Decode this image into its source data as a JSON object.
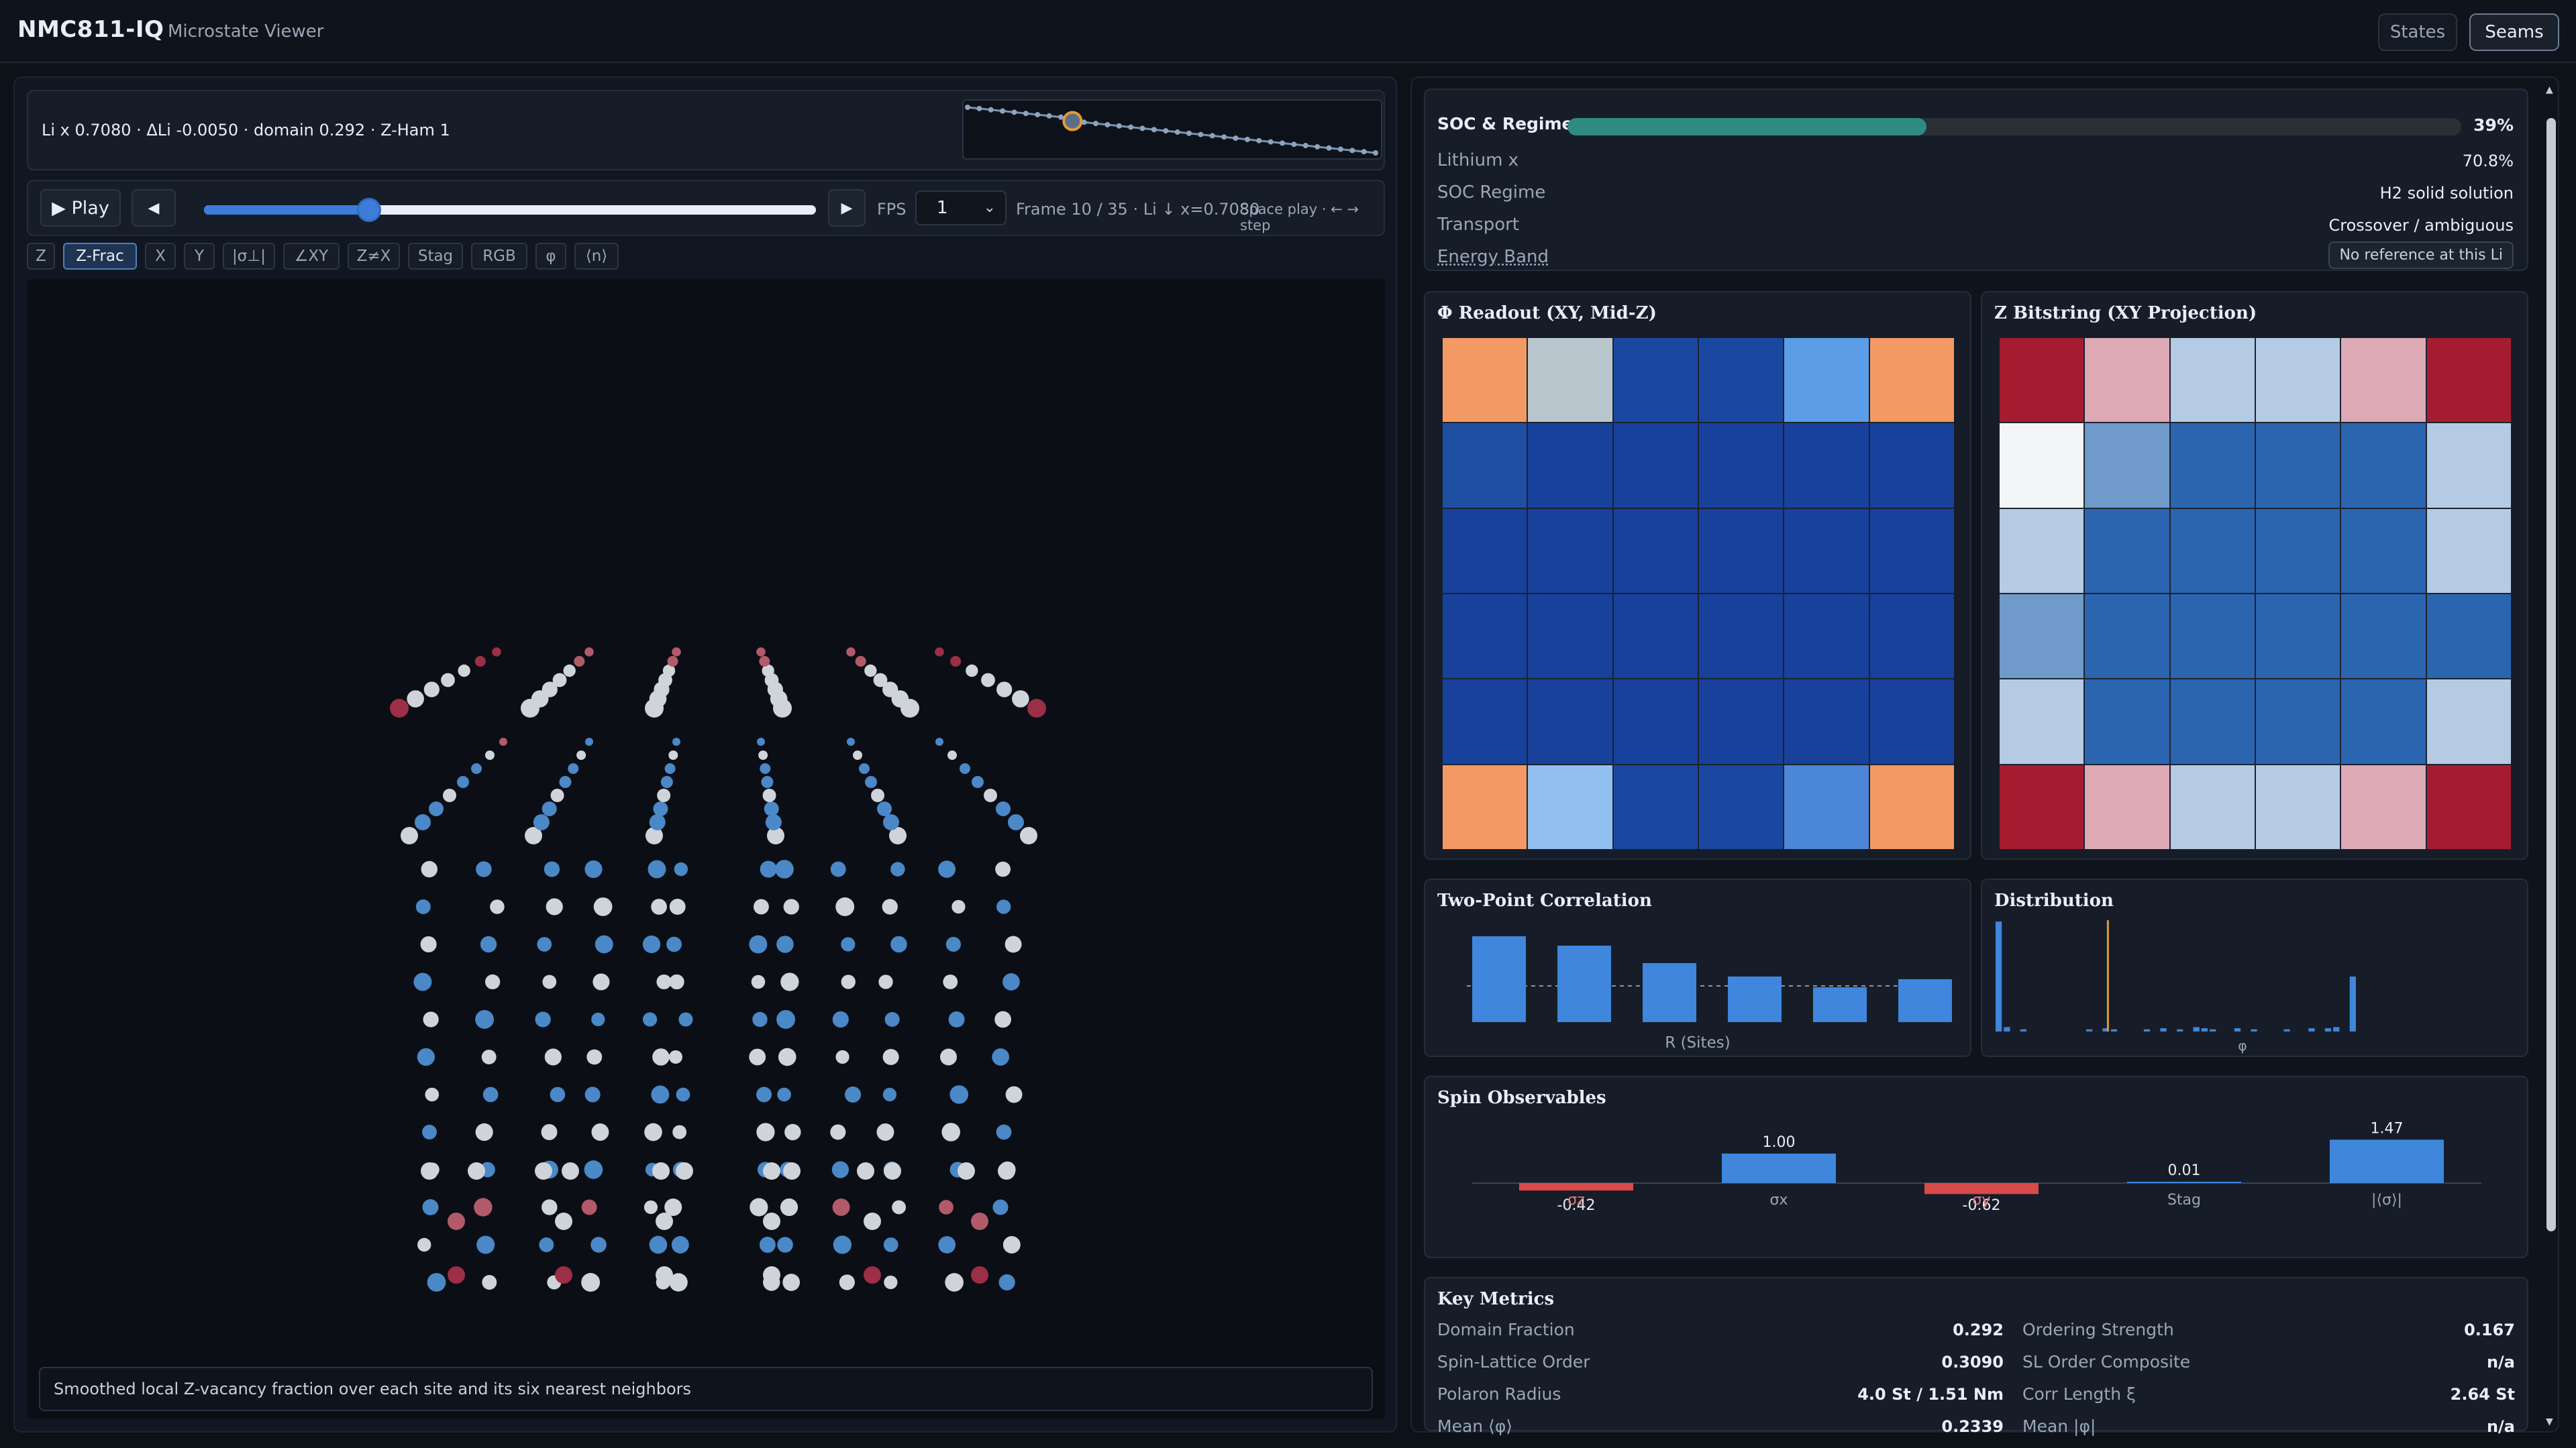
{
  "header": {
    "brand": "NMC811-IQ",
    "subtitle": "Microstate Viewer",
    "buttons": [
      {
        "label": "States",
        "active": false
      },
      {
        "label": "Seams",
        "active": true
      }
    ]
  },
  "left": {
    "info_text": "Li x 0.7080 · ΔLi -0.0050 · domain 0.292 · Z-Ham 1",
    "sparkline": {
      "points": 36,
      "current_index": 9
    },
    "controls": {
      "play_label": "▶ Play",
      "prev_label": "◀",
      "next_label": "▶",
      "slider_fraction": 0.27,
      "fps_label": "FPS",
      "fps_value": "1",
      "frame_text": "Frame 10 / 35 · Li ↓ x=0.7080",
      "hint_text": "Space play · ← → step"
    },
    "modes": [
      {
        "label": "Z",
        "active": false
      },
      {
        "label": "Z-Frac",
        "active": true
      },
      {
        "label": "X",
        "active": false
      },
      {
        "label": "Y",
        "active": false
      },
      {
        "label": "|σ⊥|",
        "active": false
      },
      {
        "label": "∠XY",
        "active": false
      },
      {
        "label": "Z≠X",
        "active": false
      },
      {
        "label": "Stag",
        "active": false
      },
      {
        "label": "RGB",
        "active": false
      },
      {
        "label": "φ",
        "active": false
      },
      {
        "label": "⟨n⟩",
        "active": false
      }
    ],
    "caption": "Smoothed local Z-vacancy fraction over each site and its six nearest neighbors"
  },
  "right": {
    "soc": {
      "title": "SOC & Regime",
      "percent_value": 39,
      "percent_label": "39%",
      "color": "#2e8b80",
      "rows": [
        {
          "label": "Lithium x",
          "value": "70.8%"
        },
        {
          "label": "SOC Regime",
          "value": "H2 solid solution"
        },
        {
          "label": "Transport",
          "value": "Crossover / ambiguous"
        }
      ],
      "energy_label": "Energy Band",
      "energy_badge": "No reference at this Li"
    },
    "phi_readout": {
      "title": "Φ Readout (XY, Mid-Z)",
      "cells": [
        [
          "#f39a64",
          "#b9c6cd",
          "#1a48a0",
          "#1a48a0",
          "#5b9de6",
          "#f39a64"
        ],
        [
          "#1f4fa3",
          "#17419a",
          "#17419a",
          "#17419a",
          "#17419a",
          "#17419a"
        ],
        [
          "#17419a",
          "#17419a",
          "#17419a",
          "#17419a",
          "#17419a",
          "#17419a"
        ],
        [
          "#17419a",
          "#17419a",
          "#17419a",
          "#17419a",
          "#17419a",
          "#17419a"
        ],
        [
          "#17419a",
          "#17419a",
          "#17419a",
          "#17419a",
          "#17419a",
          "#17419a"
        ],
        [
          "#f39a64",
          "#91bff0",
          "#1a48a0",
          "#1a48a0",
          "#4b87d6",
          "#f39a64"
        ]
      ]
    },
    "z_bitstring": {
      "title": "Z Bitstring (XY Projection)",
      "cells": [
        [
          "#a51c30",
          "#dca9b5",
          "#b5cbe4",
          "#b5cbe4",
          "#dca9b5",
          "#a51c30"
        ],
        [
          "#f4f5f7",
          "#6f9ac9",
          "#2b65b0",
          "#2b65b0",
          "#2b65b0",
          "#b5cbe4"
        ],
        [
          "#b5cbe4",
          "#2b65b0",
          "#2b65b0",
          "#2b65b0",
          "#2b65b0",
          "#b5cbe4"
        ],
        [
          "#6f9ac9",
          "#2b65b0",
          "#2b65b0",
          "#2b65b0",
          "#2b65b0",
          "#2b65b0"
        ],
        [
          "#b5cbe4",
          "#2b65b0",
          "#2b65b0",
          "#2b65b0",
          "#2b65b0",
          "#b5cbe4"
        ],
        [
          "#a51c30",
          "#dca9b5",
          "#b5cbe4",
          "#b5cbe4",
          "#dca9b5",
          "#a51c30"
        ]
      ]
    },
    "two_point": {
      "title": "Two-Point Correlation",
      "xlabel": "R (Sites)"
    },
    "distribution": {
      "title": "Distribution",
      "xlabel": "φ"
    },
    "spin": {
      "title": "Spin Observables"
    },
    "metrics": {
      "title": "Key Metrics",
      "left": [
        {
          "label": "Domain Fraction",
          "value": "0.292"
        },
        {
          "label": "Spin-Lattice Order",
          "value": "0.3090"
        },
        {
          "label": "Polaron Radius",
          "value": "4.0 St / 1.51 Nm"
        },
        {
          "label": "Mean ⟨φ⟩",
          "value": "0.2339"
        }
      ],
      "right": [
        {
          "label": "Ordering Strength",
          "value": "0.167"
        },
        {
          "label": "SL Order Composite",
          "value": "n/a"
        },
        {
          "label": "Corr Length ξ",
          "value": "2.64 St"
        },
        {
          "label": "Mean |φ|",
          "value": "n/a"
        }
      ]
    }
  },
  "chart_data": [
    {
      "type": "bar",
      "title": "Two-Point Correlation",
      "xlabel": "R (Sites)",
      "categories": [
        "",
        "",
        "",
        "",
        "",
        ""
      ],
      "values": [
        0.64,
        0.57,
        0.44,
        0.34,
        0.26,
        0.32
      ],
      "ylim": [
        0,
        0.7
      ],
      "color": "#3f86dc"
    },
    {
      "type": "bar",
      "title": "Distribution",
      "xlabel": "φ",
      "values": [
        1.0,
        0.04,
        0.0,
        0.02,
        0.0,
        0.0,
        0.0,
        0.0,
        0.0,
        0.0,
        0.0,
        0.02,
        0.0,
        0.03,
        0.02,
        0.0,
        0.0,
        0.0,
        0.02,
        0.0,
        0.03,
        0.0,
        0.02,
        0.0,
        0.04,
        0.03,
        0.02,
        0.0,
        0.0,
        0.03,
        0.0,
        0.02,
        0.0,
        0.0,
        0.0,
        0.02,
        0.0,
        0.0,
        0.03,
        0.0,
        0.03,
        0.04,
        0.0,
        0.5
      ],
      "marker_fraction": 0.31,
      "color": "#3f86dc",
      "marker_color": "#d99a3c"
    },
    {
      "type": "bar",
      "title": "Spin Observables",
      "categories": [
        "σz",
        "σx",
        "σy",
        "Stag",
        "|⟨σ⟩|"
      ],
      "values": [
        -0.42,
        1.0,
        -0.62,
        0.01,
        1.47
      ],
      "labels": [
        "-0.42",
        "1.00",
        "-0.62",
        "0.01",
        "1.47"
      ],
      "ylim": [
        -1.0,
        1.6
      ],
      "pos_color": "#3f86dc",
      "neg_color": "#d94a4a"
    }
  ]
}
